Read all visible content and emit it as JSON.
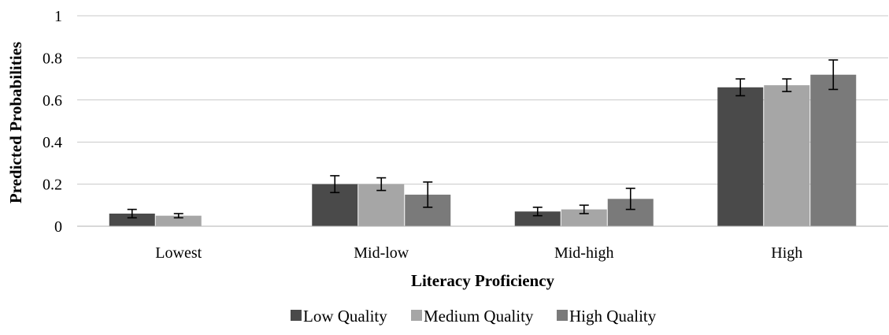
{
  "chart_data": {
    "type": "bar",
    "title": "",
    "xlabel": "Literacy Proficiency",
    "ylabel": "Predicted Probabilities",
    "ylim": [
      0,
      1
    ],
    "yticks": [
      0,
      0.2,
      0.4,
      0.6,
      0.8,
      1
    ],
    "ytick_labels": [
      "0",
      "0.2",
      "0.4",
      "0.6",
      "0.8",
      "1"
    ],
    "grid": true,
    "legend_position": "bottom",
    "categories": [
      "Lowest",
      "Mid-low",
      "Mid-high",
      "High"
    ],
    "series": [
      {
        "name": "Low Quality",
        "color": "#4a4a4a",
        "values": [
          0.06,
          0.2,
          0.07,
          0.66
        ],
        "err_low": [
          0.04,
          0.16,
          0.05,
          0.62
        ],
        "err_high": [
          0.08,
          0.24,
          0.09,
          0.7
        ]
      },
      {
        "name": "Medium Quality",
        "color": "#a6a6a6",
        "values": [
          0.05,
          0.2,
          0.08,
          0.67
        ],
        "err_low": [
          0.04,
          0.17,
          0.06,
          0.64
        ],
        "err_high": [
          0.06,
          0.23,
          0.1,
          0.7
        ]
      },
      {
        "name": "High Quality",
        "color": "#7a7a7a",
        "values": [
          0.0,
          0.15,
          0.13,
          0.72
        ],
        "err_low": [
          null,
          0.09,
          0.08,
          0.65
        ],
        "err_high": [
          null,
          0.21,
          0.18,
          0.79
        ]
      }
    ]
  }
}
